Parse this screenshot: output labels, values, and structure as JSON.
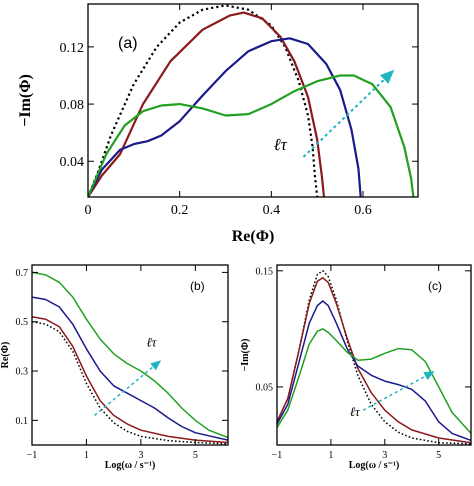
{
  "chart_data": [
    {
      "panel": "(a)",
      "type": "line",
      "xlabel": "Re(Φ)",
      "ylabel": "−Im(Φ)",
      "xlim": [
        0,
        0.72
      ],
      "ylim": [
        0.015,
        0.15
      ],
      "xticks": [
        0,
        0.2,
        0.4,
        0.6
      ],
      "xtick_labels": [
        "0",
        "0.2",
        "0.4",
        "0.6"
      ],
      "yticks": [
        0.04,
        0.08,
        0.12
      ],
      "ytick_labels": [
        "0.04",
        "0.08",
        "0.12"
      ],
      "annotation": "ℓτ",
      "arrow": {
        "from": [
          0.47,
          0.043
        ],
        "to": [
          0.665,
          0.103
        ],
        "color": "#1fb5c0"
      },
      "series": [
        {
          "color": "#000000",
          "dash": "dotted",
          "points": [
            [
              0,
              0.015
            ],
            [
              0.02,
              0.031
            ],
            [
              0.05,
              0.058
            ],
            [
              0.1,
              0.094
            ],
            [
              0.15,
              0.12
            ],
            [
              0.2,
              0.137
            ],
            [
              0.25,
              0.146
            ],
            [
              0.3,
              0.149
            ],
            [
              0.35,
              0.146
            ],
            [
              0.4,
              0.135
            ],
            [
              0.43,
              0.12
            ],
            [
              0.46,
              0.096
            ],
            [
              0.48,
              0.072
            ],
            [
              0.49,
              0.05
            ],
            [
              0.495,
              0.03
            ],
            [
              0.5,
              0.015
            ]
          ]
        },
        {
          "color": "#8b1a1a",
          "dash": "solid",
          "points": [
            [
              0,
              0.015
            ],
            [
              0.03,
              0.03
            ],
            [
              0.07,
              0.045
            ],
            [
              0.12,
              0.08
            ],
            [
              0.18,
              0.11
            ],
            [
              0.25,
              0.132
            ],
            [
              0.31,
              0.142
            ],
            [
              0.34,
              0.144
            ],
            [
              0.38,
              0.14
            ],
            [
              0.42,
              0.127
            ],
            [
              0.45,
              0.11
            ],
            [
              0.48,
              0.085
            ],
            [
              0.5,
              0.055
            ],
            [
              0.51,
              0.03
            ],
            [
              0.515,
              0.015
            ]
          ]
        },
        {
          "color": "#1a1a8b",
          "dash": "solid",
          "points": [
            [
              0,
              0.015
            ],
            [
              0.03,
              0.034
            ],
            [
              0.07,
              0.048
            ],
            [
              0.1,
              0.052
            ],
            [
              0.13,
              0.054
            ],
            [
              0.16,
              0.058
            ],
            [
              0.2,
              0.068
            ],
            [
              0.25,
              0.086
            ],
            [
              0.3,
              0.103
            ],
            [
              0.35,
              0.117
            ],
            [
              0.4,
              0.124
            ],
            [
              0.44,
              0.126
            ],
            [
              0.48,
              0.122
            ],
            [
              0.52,
              0.108
            ],
            [
              0.55,
              0.09
            ],
            [
              0.575,
              0.062
            ],
            [
              0.59,
              0.035
            ],
            [
              0.595,
              0.015
            ]
          ]
        },
        {
          "color": "#22a022",
          "dash": "solid",
          "points": [
            [
              0,
              0.015
            ],
            [
              0.04,
              0.045
            ],
            [
              0.08,
              0.065
            ],
            [
              0.12,
              0.075
            ],
            [
              0.16,
              0.079
            ],
            [
              0.2,
              0.08
            ],
            [
              0.25,
              0.077
            ],
            [
              0.3,
              0.072
            ],
            [
              0.35,
              0.073
            ],
            [
              0.4,
              0.08
            ],
            [
              0.45,
              0.089
            ],
            [
              0.5,
              0.096
            ],
            [
              0.55,
              0.1
            ],
            [
              0.58,
              0.1
            ],
            [
              0.62,
              0.094
            ],
            [
              0.66,
              0.078
            ],
            [
              0.69,
              0.05
            ],
            [
              0.705,
              0.028
            ],
            [
              0.71,
              0.015
            ]
          ]
        }
      ]
    },
    {
      "panel": "(b)",
      "type": "line",
      "xlabel": "Log(ω / s⁻¹)",
      "ylabel": "Re(Φ)",
      "xlim": [
        -1,
        6.2
      ],
      "ylim": [
        0,
        0.73
      ],
      "xticks": [
        -1,
        1,
        3,
        5
      ],
      "xtick_labels": [
        "−1",
        "1",
        "3",
        "5"
      ],
      "yticks": [
        0.1,
        0.3,
        0.5,
        0.7
      ],
      "ytick_labels": [
        "0.1",
        "0.3",
        "0.5",
        "0.7"
      ],
      "annotation": "ℓτ",
      "arrow": {
        "from": [
          1.3,
          0.12
        ],
        "to": [
          3.7,
          0.34
        ],
        "color": "#1fb5c0"
      },
      "series": [
        {
          "color": "#000000",
          "dash": "dotted",
          "points": [
            [
              -1,
              0.5
            ],
            [
              -0.5,
              0.49
            ],
            [
              0,
              0.46
            ],
            [
              0.5,
              0.38
            ],
            [
              1,
              0.25
            ],
            [
              1.5,
              0.15
            ],
            [
              2,
              0.09
            ],
            [
              2.5,
              0.055
            ],
            [
              3,
              0.035
            ],
            [
              4,
              0.018
            ],
            [
              5,
              0.01
            ],
            [
              6.2,
              0.005
            ]
          ]
        },
        {
          "color": "#8b1a1a",
          "dash": "solid",
          "points": [
            [
              -1,
              0.52
            ],
            [
              -0.5,
              0.51
            ],
            [
              0,
              0.48
            ],
            [
              0.5,
              0.4
            ],
            [
              1,
              0.28
            ],
            [
              1.5,
              0.18
            ],
            [
              2,
              0.12
            ],
            [
              2.5,
              0.085
            ],
            [
              3,
              0.06
            ],
            [
              4,
              0.035
            ],
            [
              5,
              0.02
            ],
            [
              6.2,
              0.01
            ]
          ]
        },
        {
          "color": "#1a1a8b",
          "dash": "solid",
          "points": [
            [
              -1,
              0.6
            ],
            [
              -0.5,
              0.59
            ],
            [
              0,
              0.56
            ],
            [
              0.5,
              0.49
            ],
            [
              1,
              0.39
            ],
            [
              1.5,
              0.3
            ],
            [
              2,
              0.24
            ],
            [
              2.5,
              0.21
            ],
            [
              3,
              0.18
            ],
            [
              3.5,
              0.15
            ],
            [
              4,
              0.11
            ],
            [
              4.5,
              0.075
            ],
            [
              5,
              0.05
            ],
            [
              6.2,
              0.02
            ]
          ]
        },
        {
          "color": "#22a022",
          "dash": "solid",
          "points": [
            [
              -1,
              0.7
            ],
            [
              -0.5,
              0.69
            ],
            [
              0,
              0.66
            ],
            [
              0.5,
              0.6
            ],
            [
              1,
              0.51
            ],
            [
              1.5,
              0.43
            ],
            [
              2,
              0.37
            ],
            [
              2.5,
              0.33
            ],
            [
              3,
              0.3
            ],
            [
              3.5,
              0.26
            ],
            [
              4,
              0.21
            ],
            [
              4.5,
              0.15
            ],
            [
              5,
              0.1
            ],
            [
              5.5,
              0.06
            ],
            [
              6.2,
              0.03
            ]
          ]
        }
      ]
    },
    {
      "panel": "(c)",
      "type": "line",
      "xlabel": "Log(ω / s⁻¹)",
      "ylabel": "−Im(Φ)",
      "xlim": [
        -1,
        6.2
      ],
      "ylim": [
        0,
        0.155
      ],
      "xticks": [
        -1,
        1,
        3,
        5
      ],
      "xtick_labels": [
        "−1",
        "1",
        "3",
        "5"
      ],
      "yticks": [
        0.05,
        0.15
      ],
      "ytick_labels": [
        "0.05",
        "0.15"
      ],
      "annotation": "ℓτ",
      "arrow": {
        "from": [
          2.2,
          0.03
        ],
        "to": [
          4.8,
          0.063
        ],
        "color": "#1fb5c0"
      },
      "series": [
        {
          "color": "#000000",
          "dash": "dotted",
          "points": [
            [
              -1,
              0.02
            ],
            [
              -0.6,
              0.04
            ],
            [
              -0.2,
              0.08
            ],
            [
              0.2,
              0.125
            ],
            [
              0.5,
              0.147
            ],
            [
              0.7,
              0.15
            ],
            [
              0.9,
              0.145
            ],
            [
              1.2,
              0.125
            ],
            [
              1.6,
              0.09
            ],
            [
              2,
              0.06
            ],
            [
              2.5,
              0.035
            ],
            [
              3,
              0.02
            ],
            [
              3.5,
              0.011
            ],
            [
              4,
              0.006
            ],
            [
              5,
              0.002
            ],
            [
              6.2,
              0.001
            ]
          ]
        },
        {
          "color": "#8b1a1a",
          "dash": "solid",
          "points": [
            [
              -1,
              0.02
            ],
            [
              -0.6,
              0.04
            ],
            [
              -0.2,
              0.08
            ],
            [
              0.2,
              0.122
            ],
            [
              0.5,
              0.141
            ],
            [
              0.7,
              0.144
            ],
            [
              0.9,
              0.14
            ],
            [
              1.2,
              0.122
            ],
            [
              1.6,
              0.092
            ],
            [
              2,
              0.066
            ],
            [
              2.5,
              0.045
            ],
            [
              3,
              0.03
            ],
            [
              3.5,
              0.02
            ],
            [
              4,
              0.013
            ],
            [
              5,
              0.006
            ],
            [
              6.2,
              0.002
            ]
          ]
        },
        {
          "color": "#1a1a8b",
          "dash": "solid",
          "points": [
            [
              -1,
              0.018
            ],
            [
              -0.6,
              0.035
            ],
            [
              -0.2,
              0.07
            ],
            [
              0.2,
              0.105
            ],
            [
              0.5,
              0.12
            ],
            [
              0.7,
              0.124
            ],
            [
              0.9,
              0.12
            ],
            [
              1.2,
              0.105
            ],
            [
              1.6,
              0.083
            ],
            [
              2,
              0.068
            ],
            [
              2.5,
              0.06
            ],
            [
              3,
              0.055
            ],
            [
              3.5,
              0.052
            ],
            [
              4,
              0.048
            ],
            [
              4.5,
              0.038
            ],
            [
              5,
              0.02
            ],
            [
              5.5,
              0.01
            ],
            [
              6.2,
              0.004
            ]
          ]
        },
        {
          "color": "#22a022",
          "dash": "solid",
          "points": [
            [
              -1,
              0.015
            ],
            [
              -0.6,
              0.03
            ],
            [
              -0.2,
              0.058
            ],
            [
              0.2,
              0.087
            ],
            [
              0.5,
              0.098
            ],
            [
              0.7,
              0.1
            ],
            [
              0.9,
              0.097
            ],
            [
              1.2,
              0.09
            ],
            [
              1.6,
              0.08
            ],
            [
              2,
              0.073
            ],
            [
              2.5,
              0.074
            ],
            [
              3,
              0.079
            ],
            [
              3.5,
              0.083
            ],
            [
              4,
              0.082
            ],
            [
              4.5,
              0.072
            ],
            [
              5,
              0.05
            ],
            [
              5.5,
              0.028
            ],
            [
              6.2,
              0.01
            ]
          ]
        }
      ]
    }
  ]
}
